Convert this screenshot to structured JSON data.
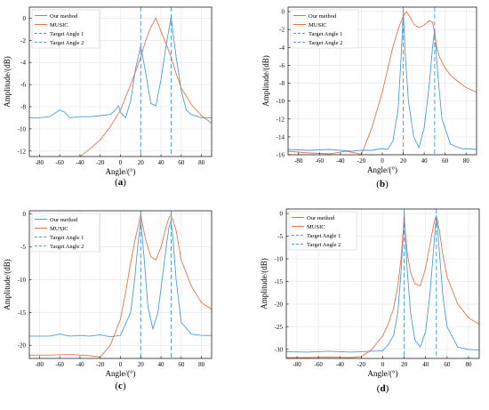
{
  "colors": {
    "our_method": "#4a9fd6",
    "music": "#e8744a",
    "target_angle_1": "#4a9fd6",
    "target_angle_2": "#4a9fd6",
    "grid": "#e4e4e4",
    "axis": "#000000"
  },
  "chart_data": [
    {
      "type": "line",
      "panel_label": "(a)",
      "xlabel": "Angle/(°)",
      "ylabel": "Amplitude/(dB)",
      "xlim": [
        -90,
        90
      ],
      "ylim": [
        -12.5,
        1
      ],
      "xticks": [
        -80,
        -60,
        -40,
        -20,
        0,
        20,
        40,
        60,
        80
      ],
      "yticks": [
        0,
        -2,
        -4,
        -6,
        -8,
        -10,
        -12
      ],
      "grid": true,
      "legend_position": "top-left",
      "legend": [
        "Our method",
        "MUSIC",
        "Target Angle 1",
        "Target Angle 2"
      ],
      "target_angles": [
        20,
        50
      ],
      "series": [
        {
          "name": "Our method",
          "x": [
            -90,
            -80,
            -70,
            -60,
            -55,
            -50,
            -40,
            -30,
            -20,
            -10,
            -5,
            -2,
            0,
            5,
            10,
            15,
            20,
            25,
            30,
            35,
            40,
            45,
            50,
            55,
            60,
            65,
            70,
            80,
            90
          ],
          "y": [
            -9,
            -9,
            -8.9,
            -8.3,
            -8.5,
            -9,
            -8.9,
            -8.9,
            -8.8,
            -8.7,
            -8.3,
            -7.9,
            -8.5,
            -9,
            -7.5,
            -4.5,
            -2.5,
            -5,
            -7.7,
            -7.9,
            -5.5,
            -2.5,
            0.1,
            -3.5,
            -6.5,
            -8.3,
            -8.7,
            -9,
            -9
          ]
        },
        {
          "name": "MUSIC",
          "x": [
            -40,
            -30,
            -20,
            -10,
            0,
            10,
            15,
            20,
            25,
            30,
            35,
            40,
            45,
            50,
            55,
            60,
            70,
            80,
            90
          ],
          "y": [
            -12.5,
            -11.8,
            -11,
            -9.8,
            -8.3,
            -6,
            -4.8,
            -3.5,
            -2,
            -0.8,
            0,
            -1.2,
            -2.3,
            -3.5,
            -5,
            -6.3,
            -7.8,
            -8.8,
            -9.5
          ]
        }
      ]
    },
    {
      "type": "line",
      "panel_label": "(b)",
      "xlabel": "Angle/(°)",
      "ylabel": "Amplitude/(dB)",
      "xlim": [
        -90,
        90
      ],
      "ylim": [
        -16,
        0.5
      ],
      "xticks": [
        -80,
        -60,
        -40,
        -20,
        0,
        20,
        40,
        60,
        80
      ],
      "yticks": [
        0,
        -2,
        -4,
        -6,
        -8,
        -10,
        -12,
        -14,
        -16
      ],
      "grid": true,
      "legend_position": "top-left",
      "legend": [
        "Our method",
        "MUSIC",
        "Target Angle 1",
        "Target Angle 2"
      ],
      "target_angles": [
        20,
        50
      ],
      "series": [
        {
          "name": "Our method",
          "x": [
            -90,
            -70,
            -50,
            -40,
            -30,
            -20,
            -10,
            0,
            5,
            10,
            15,
            18,
            20,
            22,
            25,
            30,
            35,
            40,
            45,
            48,
            50,
            53,
            57,
            65,
            75,
            90
          ],
          "y": [
            -15.4,
            -15.5,
            -15.4,
            -15.5,
            -15.6,
            -15.5,
            -15.5,
            -15.3,
            -15.4,
            -14.5,
            -11,
            -5,
            0,
            -5,
            -10,
            -14,
            -15.2,
            -13,
            -8,
            -4,
            -2,
            -7,
            -12,
            -14.8,
            -15.3,
            -15.4
          ]
        },
        {
          "name": "MUSIC",
          "x": [
            -90,
            -70,
            -50,
            -35,
            -25,
            -20,
            -10,
            0,
            5,
            10,
            15,
            20,
            23,
            27,
            30,
            35,
            40,
            45,
            48,
            50,
            52,
            55,
            60,
            65,
            70,
            80,
            90
          ],
          "y": [
            -15.6,
            -15.8,
            -15.9,
            -15.6,
            -15.8,
            -16,
            -13,
            -9,
            -6.5,
            -4,
            -2,
            -0.5,
            0,
            -0.7,
            -1.4,
            -1.8,
            -1.5,
            -1,
            -1.2,
            -2.5,
            -4,
            -5.2,
            -6.3,
            -7.1,
            -7.6,
            -8.5,
            -9
          ]
        }
      ]
    },
    {
      "type": "line",
      "panel_label": "(c)",
      "xlabel": "Angle/(°)",
      "ylabel": "Amplitude/(dB)",
      "xlim": [
        -90,
        90
      ],
      "ylim": [
        -22,
        0.5
      ],
      "xticks": [
        -80,
        -60,
        -40,
        -20,
        0,
        20,
        40,
        60,
        80
      ],
      "yticks": [
        0,
        -5,
        -10,
        -15,
        -20
      ],
      "grid": true,
      "legend_position": "top-left",
      "legend": [
        "Our method",
        "MUSIC",
        "Target Angle 1",
        "Target Angle 2"
      ],
      "target_angles": [
        20,
        50
      ],
      "series": [
        {
          "name": "Our method",
          "x": [
            -90,
            -70,
            -60,
            -50,
            -40,
            -30,
            -20,
            -10,
            0,
            10,
            14,
            17,
            20,
            23,
            27,
            32,
            37,
            42,
            46,
            48,
            50,
            52,
            55,
            60,
            70,
            80,
            90
          ],
          "y": [
            -18.6,
            -18.6,
            -18.3,
            -18.6,
            -18.5,
            -18.6,
            -18.4,
            -18.7,
            -18.5,
            -15,
            -10,
            -5,
            -1,
            -6,
            -14,
            -17.5,
            -15,
            -9,
            -4,
            -2,
            -1,
            -4,
            -10,
            -16.5,
            -18.3,
            -18.5,
            -18.5
          ]
        },
        {
          "name": "MUSIC",
          "x": [
            -90,
            -70,
            -50,
            -30,
            -20,
            -10,
            0,
            5,
            10,
            15,
            18,
            20,
            22,
            25,
            30,
            35,
            40,
            45,
            48,
            50,
            52,
            55,
            60,
            70,
            80,
            90
          ],
          "y": [
            -21.5,
            -21.5,
            -21.4,
            -21.6,
            -21.8,
            -20,
            -16,
            -12,
            -7.5,
            -3.5,
            -1.5,
            0,
            -1.8,
            -4,
            -6.5,
            -7,
            -5,
            -2,
            -0.5,
            -0.2,
            -1,
            -2.5,
            -7,
            -11,
            -13.5,
            -14.5
          ]
        }
      ]
    },
    {
      "type": "line",
      "panel_label": "(d)",
      "xlabel": "Angle/(°)",
      "ylabel": "Amplitude/(dB)",
      "xlim": [
        -90,
        90
      ],
      "ylim": [
        -32,
        1
      ],
      "xticks": [
        -80,
        -60,
        -40,
        -20,
        0,
        20,
        40,
        60,
        80
      ],
      "yticks": [
        0,
        -5,
        -10,
        -15,
        -20,
        -25,
        -30
      ],
      "grid": true,
      "legend_position": "top-left",
      "legend": [
        "Our method",
        "MUSIC",
        "Target Angle 1",
        "Target Angle 2"
      ],
      "target_angles": [
        20,
        50
      ],
      "series": [
        {
          "name": "Our method",
          "x": [
            -90,
            -70,
            -50,
            -30,
            -10,
            0,
            5,
            10,
            14,
            17,
            19,
            20,
            21,
            23,
            26,
            30,
            35,
            40,
            44,
            47,
            49,
            50,
            51,
            53,
            56,
            60,
            70,
            80,
            90
          ],
          "y": [
            -30.5,
            -30.6,
            -30.4,
            -30.6,
            -30.4,
            -30.3,
            -29,
            -27,
            -22,
            -13,
            -5,
            0,
            -5,
            -13,
            -22,
            -28,
            -29.5,
            -26,
            -18,
            -9,
            -3,
            -1,
            -3,
            -9,
            -18,
            -25,
            -29.5,
            -30,
            -30.2
          ]
        },
        {
          "name": "MUSIC",
          "x": [
            -90,
            -70,
            -50,
            -30,
            -20,
            -10,
            0,
            5,
            10,
            14,
            17,
            19,
            20,
            21,
            23,
            26,
            30,
            35,
            40,
            44,
            47,
            49,
            50,
            51,
            53,
            56,
            60,
            70,
            80,
            90
          ],
          "y": [
            -31.8,
            -31.8,
            -31.7,
            -31.8,
            -31.6,
            -30,
            -27,
            -24.5,
            -21,
            -16,
            -10,
            -4,
            0,
            -4,
            -9,
            -13,
            -15.5,
            -16,
            -12,
            -7,
            -3,
            -1,
            -0.5,
            -1.5,
            -4,
            -9,
            -14,
            -20,
            -23,
            -24.5
          ]
        }
      ]
    }
  ]
}
